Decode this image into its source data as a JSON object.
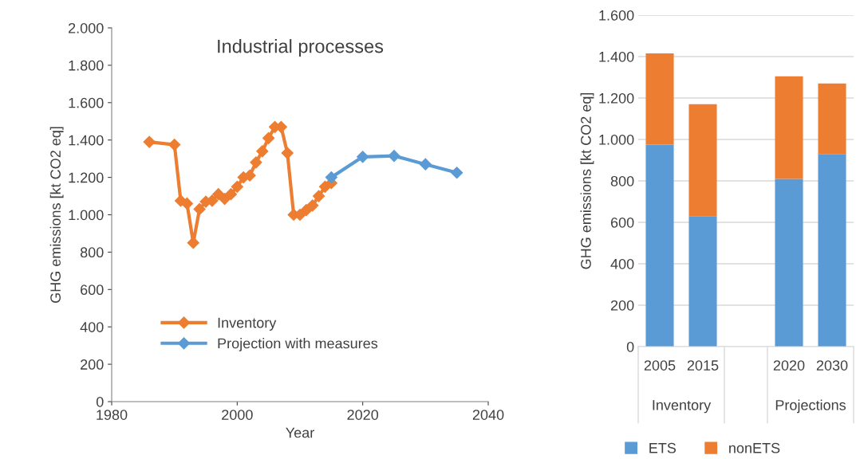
{
  "chart_data": [
    {
      "type": "line",
      "title": "Industrial processes",
      "xlabel": "Year",
      "ylabel": "GHG emissions [kt CO2 eq]",
      "xlim": [
        1980,
        2040
      ],
      "xticks": [
        1980,
        2000,
        2020,
        2040
      ],
      "ylim": [
        0,
        2000
      ],
      "yticks": [
        {
          "value": 0,
          "label": "0"
        },
        {
          "value": 200,
          "label": "200"
        },
        {
          "value": 400,
          "label": "400"
        },
        {
          "value": 600,
          "label": "600"
        },
        {
          "value": 800,
          "label": "800"
        },
        {
          "value": 1000,
          "label": "1.000"
        },
        {
          "value": 1200,
          "label": "1.200"
        },
        {
          "value": 1400,
          "label": "1.400"
        },
        {
          "value": 1600,
          "label": "1.600"
        },
        {
          "value": 1800,
          "label": "1.800"
        },
        {
          "value": 2000,
          "label": "2.000"
        }
      ],
      "grid": false,
      "legend": "lower left",
      "marker": "diamond",
      "line_style": "solid",
      "series": [
        {
          "name": "Inventory",
          "color": "#ed7d31",
          "x": [
            1986,
            1990,
            1991,
            1992,
            1993,
            1994,
            1995,
            1996,
            1997,
            1998,
            1999,
            2000,
            2001,
            2002,
            2003,
            2004,
            2005,
            2006,
            2007,
            2008,
            2009,
            2010,
            2011,
            2012,
            2013,
            2014,
            2015
          ],
          "values": [
            1390,
            1375,
            1075,
            1060,
            850,
            1030,
            1070,
            1075,
            1110,
            1085,
            1110,
            1150,
            1200,
            1210,
            1280,
            1340,
            1410,
            1470,
            1470,
            1330,
            1000,
            1000,
            1025,
            1050,
            1100,
            1150,
            1170
          ]
        },
        {
          "name": "Projection with measures",
          "color": "#5b9bd5",
          "x": [
            2015,
            2020,
            2025,
            2030,
            2035
          ],
          "values": [
            1200,
            1310,
            1315,
            1270,
            1225
          ]
        }
      ]
    },
    {
      "type": "bar",
      "stacked": true,
      "ylabel": "GHG emissions [kt CO2 eq]",
      "categories": [
        "2005",
        "2015",
        null,
        "2020",
        "2030"
      ],
      "ylim": [
        0,
        1600
      ],
      "yticks": [
        {
          "value": 0,
          "label": "0"
        },
        {
          "value": 200,
          "label": "200"
        },
        {
          "value": 400,
          "label": "400"
        },
        {
          "value": 600,
          "label": "600"
        },
        {
          "value": 800,
          "label": "800"
        },
        {
          "value": 1000,
          "label": "1.000"
        },
        {
          "value": 1200,
          "label": "1.200"
        },
        {
          "value": 1400,
          "label": "1.400"
        },
        {
          "value": 1600,
          "label": "1.600"
        }
      ],
      "grid": "y",
      "legend": "bottom",
      "annotations": [
        "Inventory",
        "Projections"
      ],
      "series": [
        {
          "name": "ETS",
          "color": "#5b9bd5",
          "values": [
            975,
            630,
            null,
            810,
            930
          ]
        },
        {
          "name": "nonETS",
          "color": "#ed7d31",
          "values": [
            440,
            540,
            null,
            495,
            340
          ]
        }
      ]
    }
  ]
}
